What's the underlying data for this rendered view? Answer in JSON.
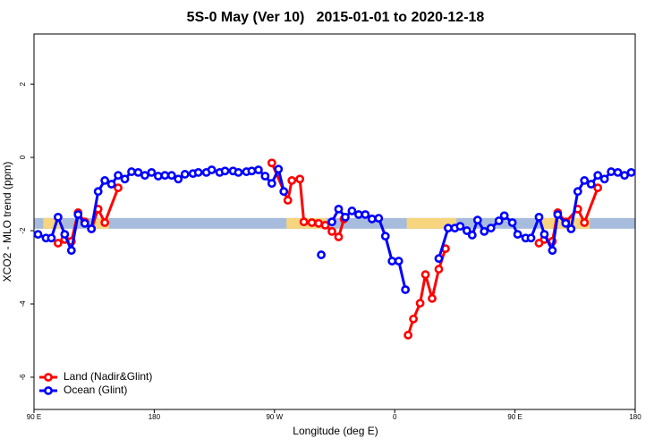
{
  "chart_data": {
    "type": "line",
    "title": "5S-0 May (Ver 10)   2015-01-01 to 2020-12-18",
    "xlabel": "Longitude (deg E)",
    "ylabel": "XCO2 - MLO trend (ppm)",
    "xlim": [
      90,
      540
    ],
    "ylim": [
      -6.88,
      3.37
    ],
    "xticks": [
      {
        "value": 90,
        "label": "90 E"
      },
      180,
      {
        "value": 270,
        "label": "90 W"
      },
      {
        "value": 360,
        "label": "0"
      },
      {
        "value": 450,
        "label": "90 E"
      },
      {
        "value": 540,
        "label": "180"
      }
    ],
    "yticks": [
      -6,
      -4,
      -2,
      0,
      2
    ],
    "legend": "bottom-left",
    "band": {
      "value": -1.8,
      "color": "#a7bcdc",
      "highlight_color": "#f6d57e",
      "highlights": [
        [
          97,
          111
        ],
        [
          136,
          146
        ],
        [
          279,
          309
        ],
        [
          369,
          406
        ],
        [
          470,
          506
        ]
      ]
    },
    "series": [
      {
        "name": "Land (Nadir&Glint)",
        "color": "#ff0000",
        "x": [
          108,
          113,
          118,
          123,
          128,
          133,
          138,
          143,
          153,
          200,
          268,
          280,
          283,
          289,
          292,
          298,
          303,
          308,
          313,
          318,
          322,
          350,
          370,
          374,
          379,
          383,
          388,
          393,
          398,
          430,
          468,
          472,
          478,
          482,
          488,
          497,
          502,
          512
        ],
        "values": [
          -2.34,
          -2.24,
          -2.29,
          -1.51,
          -1.76,
          -1.95,
          -1.41,
          -1.78,
          -0.83,
          null,
          -0.15,
          -1.17,
          -0.63,
          -0.59,
          -1.76,
          -1.78,
          -1.8,
          -1.85,
          -2.02,
          -2.17,
          -1.68,
          null,
          -4.85,
          -4.41,
          -3.98,
          -3.2,
          -3.85,
          -3.05,
          -2.49,
          null,
          -2.34,
          -2.24,
          -2.29,
          -1.51,
          -1.76,
          -1.41,
          -1.78,
          -0.83
        ]
      },
      {
        "name": "Ocean (Glint)",
        "color": "#0000ff",
        "x": [
          93,
          99,
          103,
          108,
          113,
          118,
          123,
          128,
          133,
          138,
          143,
          148,
          153,
          158,
          163,
          168,
          173,
          178,
          183,
          188,
          193,
          198,
          203,
          209,
          213,
          219,
          223,
          229,
          233,
          239,
          243,
          249,
          253,
          258,
          263,
          268,
          273,
          277,
          295,
          305,
          309,
          313,
          318,
          323,
          328,
          333,
          338,
          343,
          348,
          353,
          358,
          363,
          368,
          380,
          393,
          400,
          405,
          409,
          414,
          418,
          422,
          427,
          432,
          438,
          442,
          448,
          452,
          458,
          462,
          468,
          472,
          478,
          482,
          488,
          492,
          497,
          502,
          507,
          512,
          517,
          522,
          527,
          532,
          537
        ],
        "values": [
          -2.1,
          -2.2,
          -2.2,
          -1.63,
          -2.1,
          -2.54,
          -1.56,
          -1.8,
          -1.95,
          -0.93,
          -0.63,
          -0.73,
          -0.49,
          -0.59,
          -0.39,
          -0.41,
          -0.49,
          -0.41,
          -0.51,
          -0.49,
          -0.49,
          -0.59,
          -0.46,
          -0.44,
          -0.41,
          -0.41,
          -0.34,
          -0.41,
          -0.37,
          -0.37,
          -0.41,
          -0.39,
          -0.37,
          -0.34,
          -0.51,
          -0.71,
          -0.32,
          -0.93,
          null,
          -2.66,
          null,
          -1.76,
          -1.41,
          -1.63,
          -1.46,
          -1.56,
          -1.56,
          -1.68,
          -1.66,
          -2.15,
          -2.83,
          -2.83,
          -3.61,
          null,
          -2.76,
          -1.93,
          -1.93,
          -1.88,
          -2.0,
          -2.12,
          -1.71,
          -2.02,
          -1.93,
          -1.73,
          -1.59,
          -1.78,
          -2.1,
          -2.2,
          -2.2,
          -1.63,
          -2.1,
          -2.54,
          -1.56,
          -1.8,
          -1.95,
          -0.93,
          -0.63,
          -0.73,
          -0.49,
          -0.59,
          -0.39,
          -0.41,
          -0.49,
          -0.41
        ]
      }
    ]
  }
}
